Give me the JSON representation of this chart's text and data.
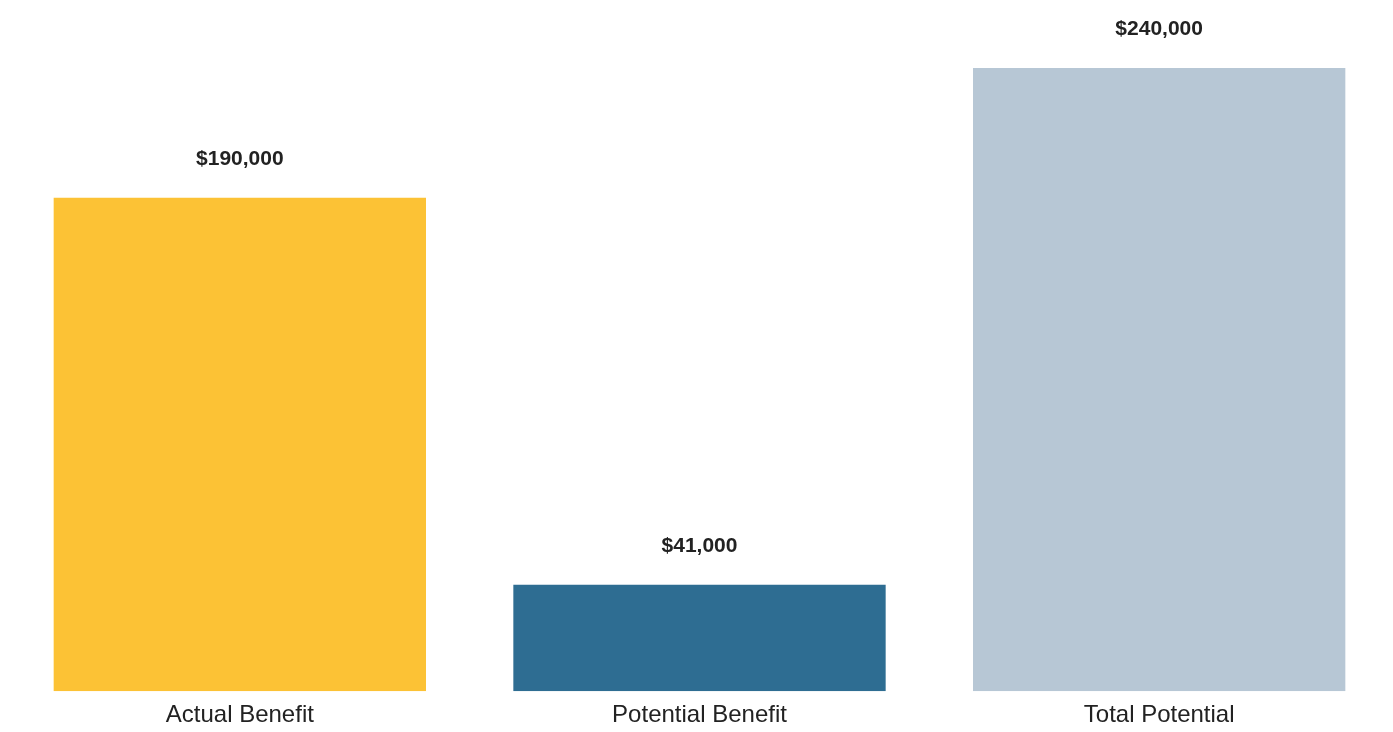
{
  "chart_data": {
    "type": "bar",
    "categories": [
      "Actual Benefit",
      "Potential Benefit",
      "Total Potential"
    ],
    "values": [
      190000,
      41000,
      240000
    ],
    "colors": [
      "#fcc235",
      "#2e6d92",
      "#b7c7d5"
    ],
    "value_labels": [
      "$190,000",
      "$41,000",
      "$240,000"
    ],
    "grid": false,
    "legend": false
  }
}
